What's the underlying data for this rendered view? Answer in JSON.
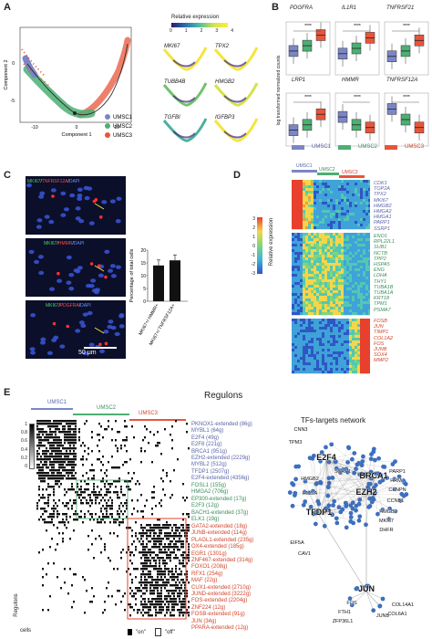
{
  "colors": {
    "umsc1": "#7b86c7",
    "umsc2": "#4caf73",
    "umsc3": "#e8553a",
    "gray": "#9aa0a6",
    "red": "#e8402c"
  },
  "panel_a": {
    "label": "A",
    "ylabel": "Component 2",
    "xlabel": "Component 1",
    "yticks": [
      "0",
      "-5"
    ],
    "xticks": [
      "-10",
      "0",
      "10"
    ],
    "legend": [
      "UMSC1",
      "UMSC2",
      "UMSC3"
    ],
    "expr_title": "Relative expression",
    "expr_ticks": [
      "0",
      "1",
      "2",
      "3",
      "4"
    ],
    "genes": [
      "MKI67",
      "TPX2",
      "TUBB4B",
      "HMGB2",
      "TGFBI",
      "IGFBP3"
    ]
  },
  "panel_b": {
    "label": "B",
    "ylabel": "log transformed normalized counts",
    "genes_row1": [
      "PDGFRA",
      "IL1R1",
      "TNFRSF21"
    ],
    "genes_row2": [
      "LRP1",
      "HMMR",
      "TNFRSF12A"
    ],
    "sig": "****",
    "legend": [
      "UMSC1",
      "UMSC2",
      "UMSC3"
    ]
  },
  "panel_c": {
    "label": "C",
    "img1": {
      "a": "MKI67",
      "b": "TNFRSF12A",
      "c": "DAPI"
    },
    "img2": {
      "a": "MKI67",
      "b": "HMMR",
      "c": "DAPI"
    },
    "img3": {
      "a": "MKI67",
      "b": "PDGFRA",
      "c": "DAPI"
    },
    "scalebar": "50 μm",
    "ylabel": "Percentage of total cells",
    "yticks": [
      "0",
      "5",
      "10",
      "15",
      "20"
    ],
    "cats": [
      "MKI67+/ HMMR+",
      "MKI67+/ TNFRSF12A+"
    ],
    "values": [
      14,
      16
    ]
  },
  "panel_d": {
    "label": "D",
    "groups": [
      "UMSC1",
      "UMSC2",
      "UMSC3"
    ],
    "scale_label": "Relative expression",
    "scale_ticks": [
      "3",
      "2",
      "1",
      "0",
      "-1",
      "-2",
      "-3"
    ],
    "genes_g1": [
      "CDK1",
      "TOP2A",
      "TPX2",
      "MKI67",
      "HMGB2",
      "HMGA2",
      "HMGA1",
      "PARP1",
      "SSRP1"
    ],
    "genes_g2": [
      "ENO1",
      "RPL22L1",
      "SUB1",
      "NCTB",
      "TPP2",
      "HSPA5",
      "ENG",
      "LDHA",
      "THY1",
      "TUBA1B",
      "TUBA1A",
      "KRT18",
      "TPM1",
      "PSMA7"
    ],
    "genes_g3": [
      "FOSB",
      "JUN",
      "TIMP1",
      "COL1A2",
      "FOS",
      "JUNB",
      "SOX4",
      "MMP2"
    ]
  },
  "panel_e": {
    "label": "E",
    "title": "Regulons",
    "groups": [
      "UMSC1",
      "UMSC2",
      "UMSC3"
    ],
    "scale_ticks": [
      "1",
      "0.8",
      "0.6",
      "0.4",
      "0.2",
      "0"
    ],
    "regulons_1": [
      "PKNOX1-extended (86g)",
      "MYBL1 (64g)",
      "E2F4 (49g)",
      "E2F8 (221g)",
      "BRCA1 (951g)",
      "EZH2-extended (2229g)",
      "MYBL2 (512g)",
      "TFDP1 (2507g)",
      "E2F4-extended (4356g)"
    ],
    "regulons_2": [
      "FOSL1 (155g)",
      "HMGA2 (706g)",
      "EP300-extended (17g)",
      "E2F3 (12g)",
      "BACH1-extended (37g)",
      "ELK1 (19g)"
    ],
    "regulons_3": [
      "GATA2-extended (18g)",
      "JUNB-extended (114g)",
      "PLAGL1-extended (235g)",
      "OX4-extended (185g)",
      "EGR1 (1301g)",
      "ZNF467-extended (314g)",
      "FOXO1 (208g)",
      "RFX1 (254g)",
      "MAF (22g)",
      "CUX1-extended (2710g)",
      "JUND-extended (3222g)",
      "FOS-extended (2204g)",
      "ZNF224 (12g)",
      "FOSB-extended (91g)",
      "JUN (34g)",
      "PPARA-extended (12g)"
    ],
    "ylabel": "Regulons",
    "xlabel": "cells",
    "legend_on": "\"on\"",
    "legend_off": "\"off\"",
    "network_title": "TFs-targets network",
    "hubs": [
      "E2F4",
      "EZH2",
      "BRCA1",
      "TFDP1",
      "JUN"
    ],
    "labels": [
      "CNN3",
      "TPM3",
      "HMGB2",
      "HMGA",
      "SSRP1",
      "PARP1",
      "HRM1",
      "CENPN",
      "CCNB1",
      "HMGB1",
      "MKI67",
      "DHFR",
      "EIF5A",
      "CAV1",
      "FOS",
      "FTH1",
      "ZFP36L1",
      "JUNB",
      "COL14A1",
      "COL6A1"
    ]
  }
}
